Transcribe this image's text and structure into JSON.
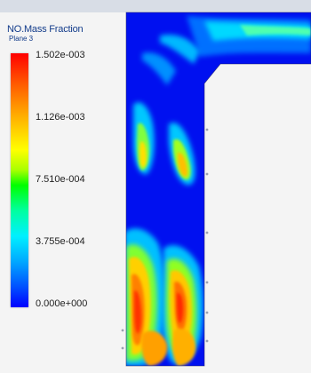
{
  "legend": {
    "title": "NO.Mass Fraction",
    "subtitle": "Plane 3",
    "ticks": [
      "1.502e-003",
      "1.126e-003",
      "7.510e-004",
      "3.755e-004",
      "0.000e+000"
    ]
  },
  "colors": {
    "background": "#f4f4f4",
    "low": "#0000ff",
    "high": "#ff0000"
  }
}
